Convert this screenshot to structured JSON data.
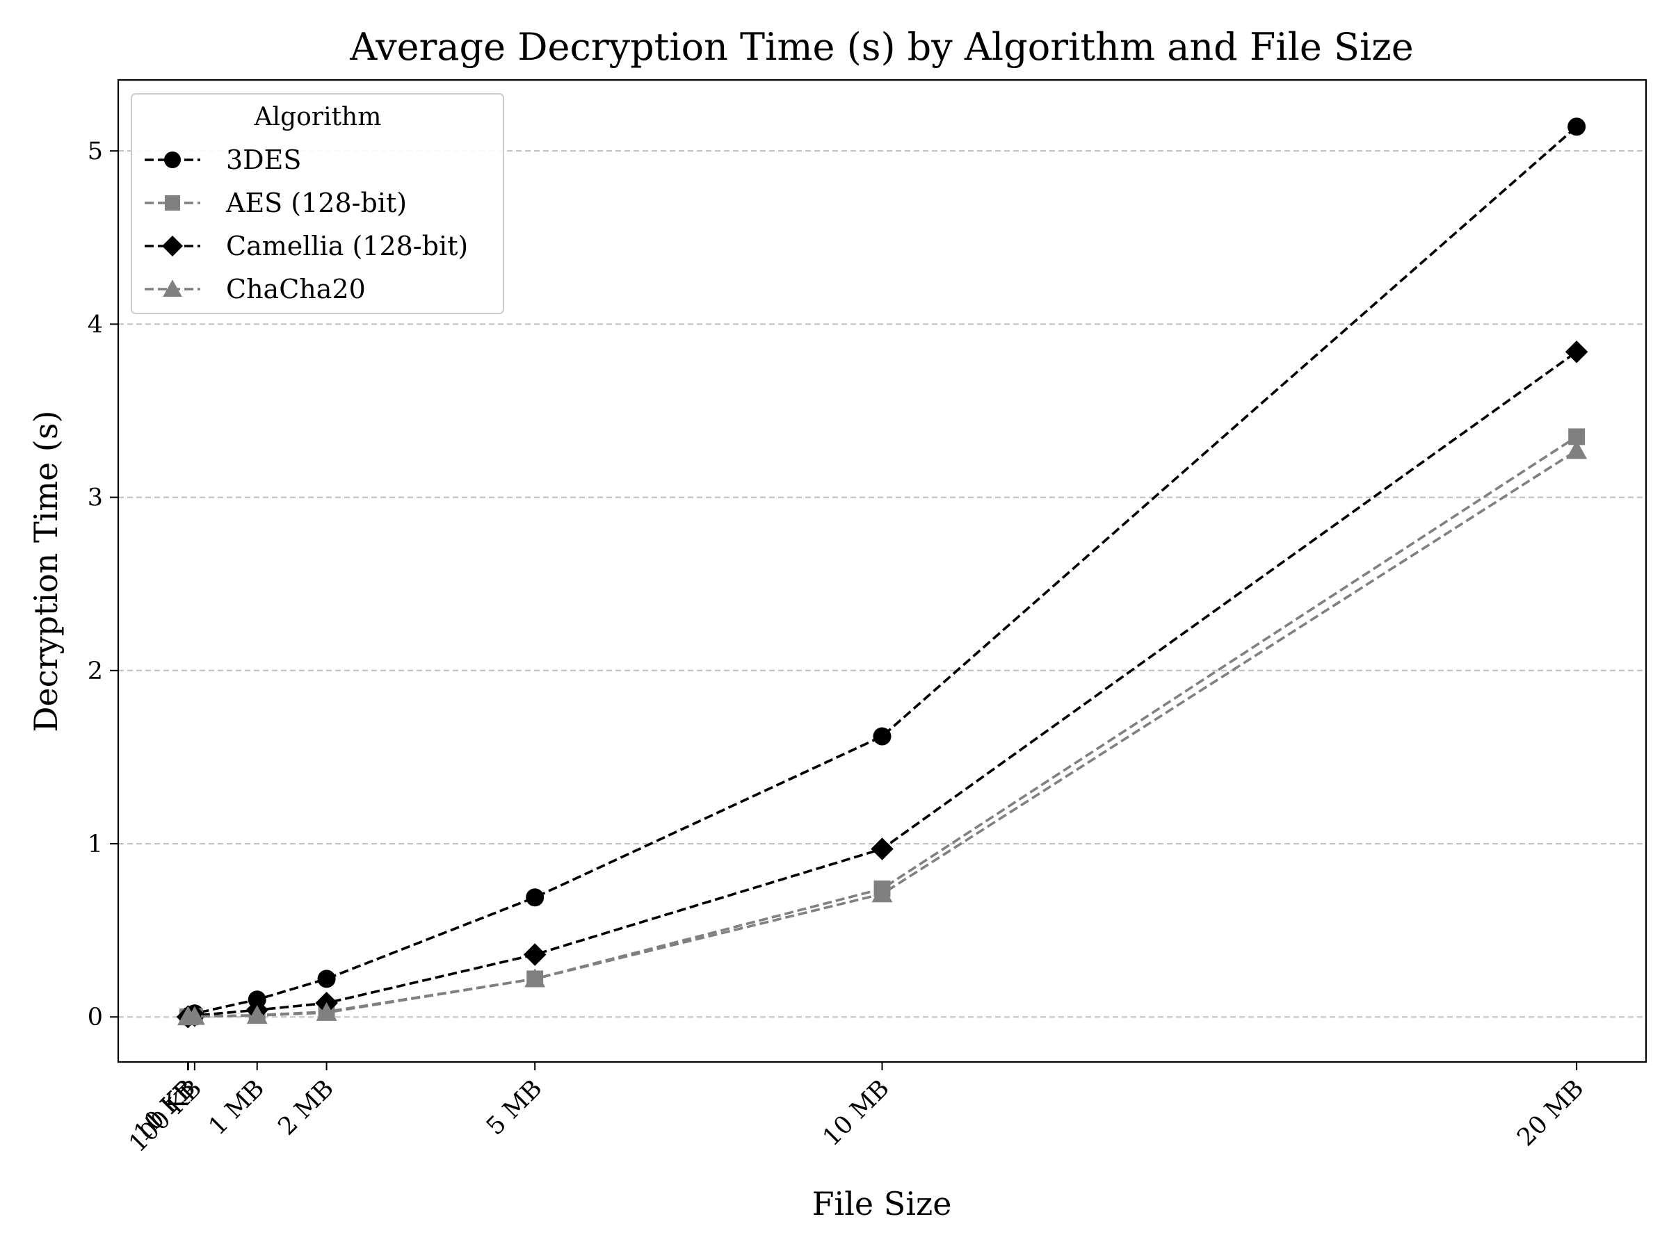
{
  "chart_data": {
    "type": "line",
    "title": "Average Decryption Time (s) by Algorithm and File Size",
    "xlabel": "File Size",
    "ylabel": "Decryption Time (s)",
    "x_unit": "MB",
    "x": [
      0.001,
      0.01,
      0.1,
      1,
      2,
      5,
      10,
      20
    ],
    "x_tick_labels": [
      "1 KB",
      "10 KB",
      "100 KB",
      "1 MB",
      "2 MB",
      "5 MB",
      "10 MB",
      "20 MB"
    ],
    "xlim": [
      -1.0,
      21.0
    ],
    "ylim": [
      -0.26,
      5.41
    ],
    "y_ticks": [
      0,
      1,
      2,
      3,
      4,
      5
    ],
    "grid": "y-dashed",
    "legend_title": "Algorithm",
    "legend_position": "upper-left",
    "series": [
      {
        "name": "3DES",
        "color": "#000000",
        "marker": "circle",
        "values": [
          0.0006,
          0.005,
          0.02,
          0.1,
          0.22,
          0.69,
          1.62,
          5.14
        ]
      },
      {
        "name": "AES (128-bit)",
        "color": "#808080",
        "marker": "square",
        "values": [
          0.0001,
          0.0005,
          0.003,
          0.01,
          0.03,
          0.22,
          0.74,
          3.35
        ]
      },
      {
        "name": "Camellia (128-bit)",
        "color": "#000000",
        "marker": "diamond",
        "values": [
          0.0003,
          0.002,
          0.008,
          0.04,
          0.08,
          0.36,
          0.97,
          3.84
        ]
      },
      {
        "name": "ChaCha20",
        "color": "#808080",
        "marker": "triangle",
        "values": [
          0.0001,
          0.0004,
          0.002,
          0.008,
          0.025,
          0.22,
          0.71,
          3.27
        ]
      }
    ]
  }
}
